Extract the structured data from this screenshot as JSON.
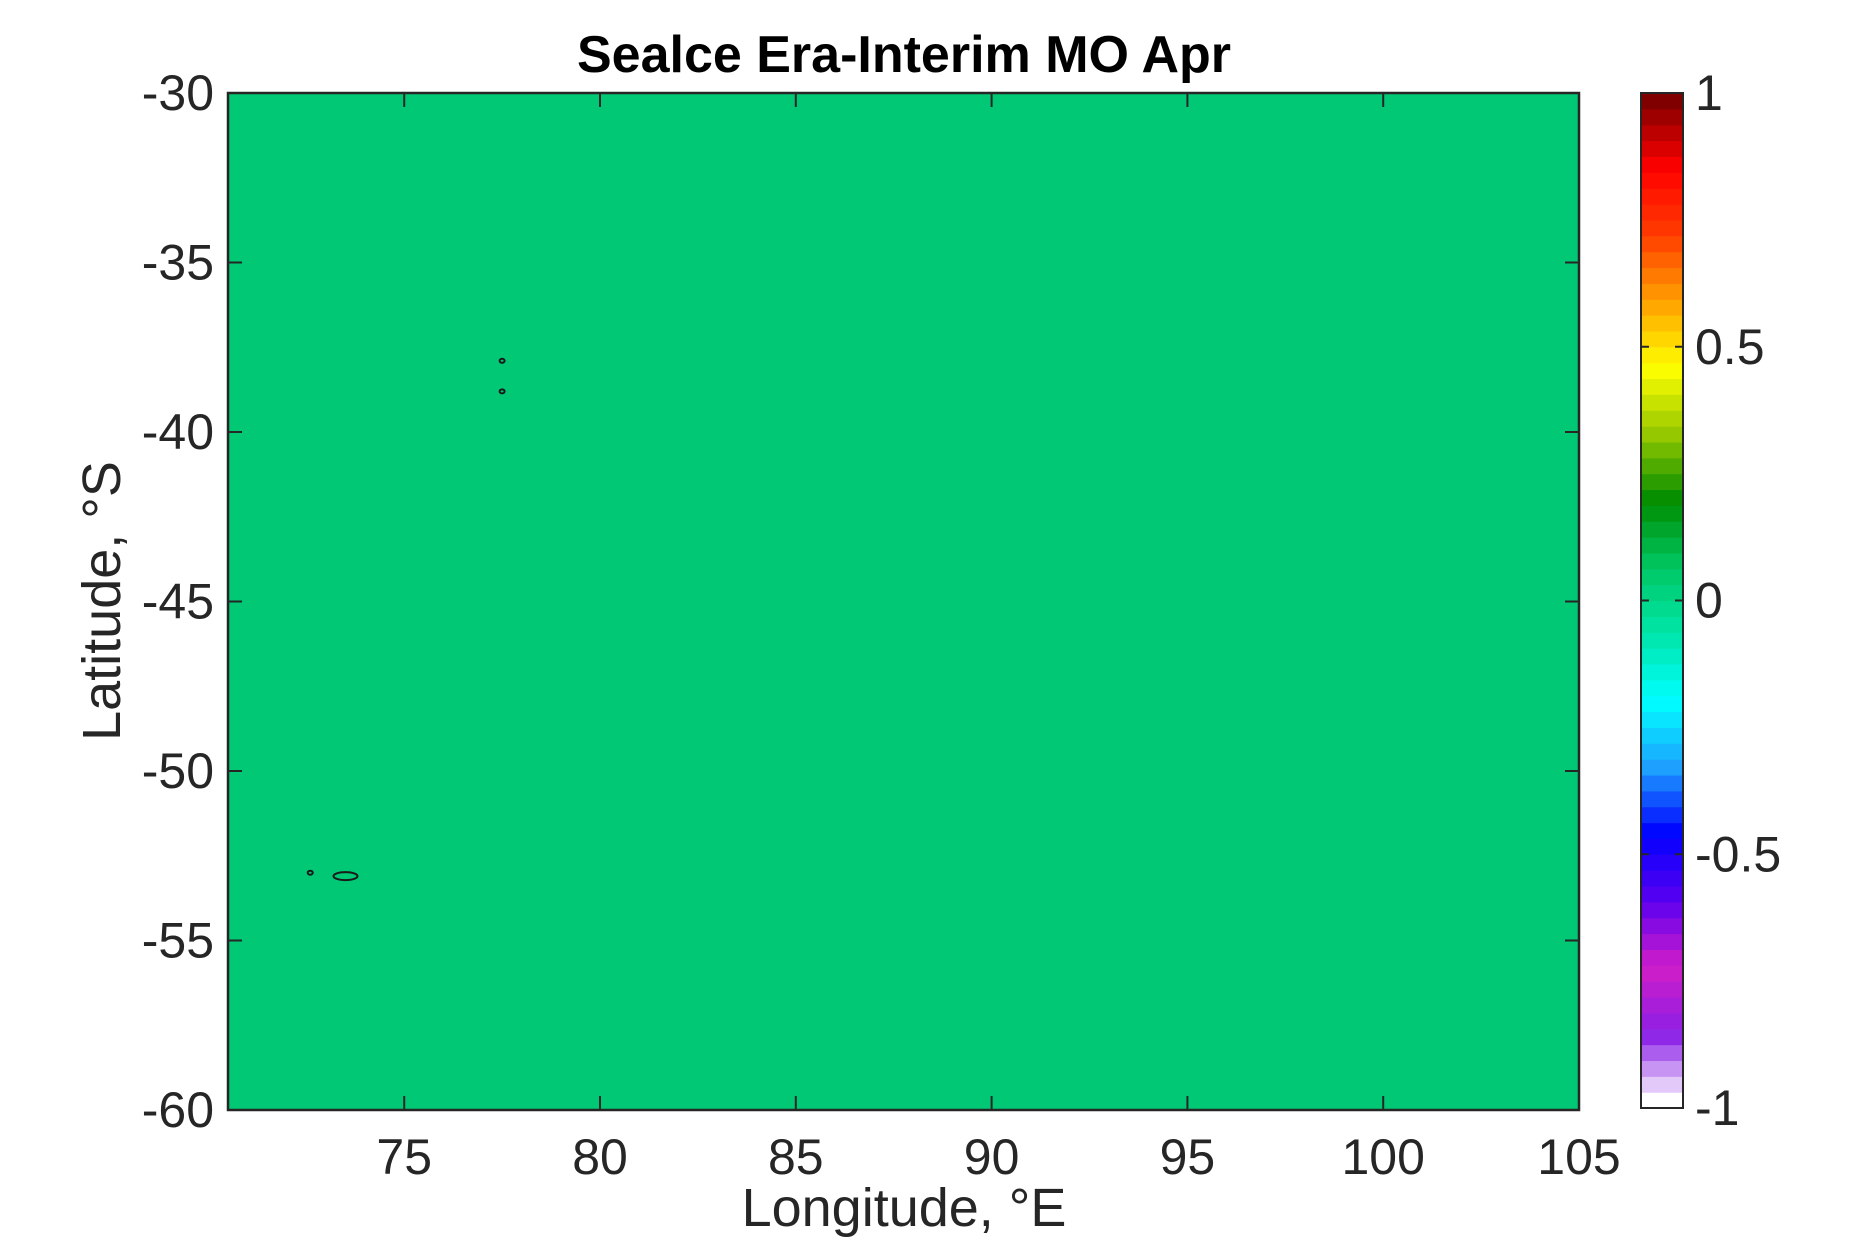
{
  "chart_data": {
    "type": "heatmap",
    "title": "Sealce Era-Interim MO Apr",
    "xlabel": "Longitude, °E",
    "ylabel": "Latitude, °S",
    "xlim": [
      70.5,
      105
    ],
    "ylim": [
      -60,
      -30
    ],
    "xticks": [
      75,
      80,
      85,
      90,
      95,
      100,
      105
    ],
    "yticks": [
      -30,
      -35,
      -40,
      -45,
      -50,
      -55,
      -60
    ],
    "xtick_labels": [
      "75",
      "80",
      "85",
      "90",
      "95",
      100,
      "105"
    ],
    "ytick_labels": [
      "-30",
      "-35",
      "-40",
      "-45",
      "-50",
      "-55",
      "-60"
    ],
    "field_value": 0.02,
    "field_color": "#00c874",
    "colorbar": {
      "range": [
        -1,
        1
      ],
      "ticks": [
        1,
        0.5,
        0,
        -0.5,
        -1
      ],
      "tick_labels": [
        "1",
        "0.5",
        "0",
        "-0.5",
        "-1"
      ],
      "colormap_stops": [
        "#ffffff",
        "#8a1ee6",
        "#d21ec8",
        "#5a00f0",
        "#0000ff",
        "#1ea0ff",
        "#00ffff",
        "#00e6aa",
        "#00c864",
        "#008c00",
        "#96c800",
        "#ffff00",
        "#ffa000",
        "#ff3c00",
        "#ff0000",
        "#800000"
      ]
    },
    "contours": [
      {
        "name": "island-contour-1",
        "lon": 77.5,
        "lat": -37.9
      },
      {
        "name": "island-contour-2",
        "lon": 77.5,
        "lat": -38.8
      },
      {
        "name": "island-contour-3",
        "lon": 73.5,
        "lat": -53.1
      },
      {
        "name": "island-contour-4",
        "lon": 72.6,
        "lat": -53.0
      }
    ]
  }
}
